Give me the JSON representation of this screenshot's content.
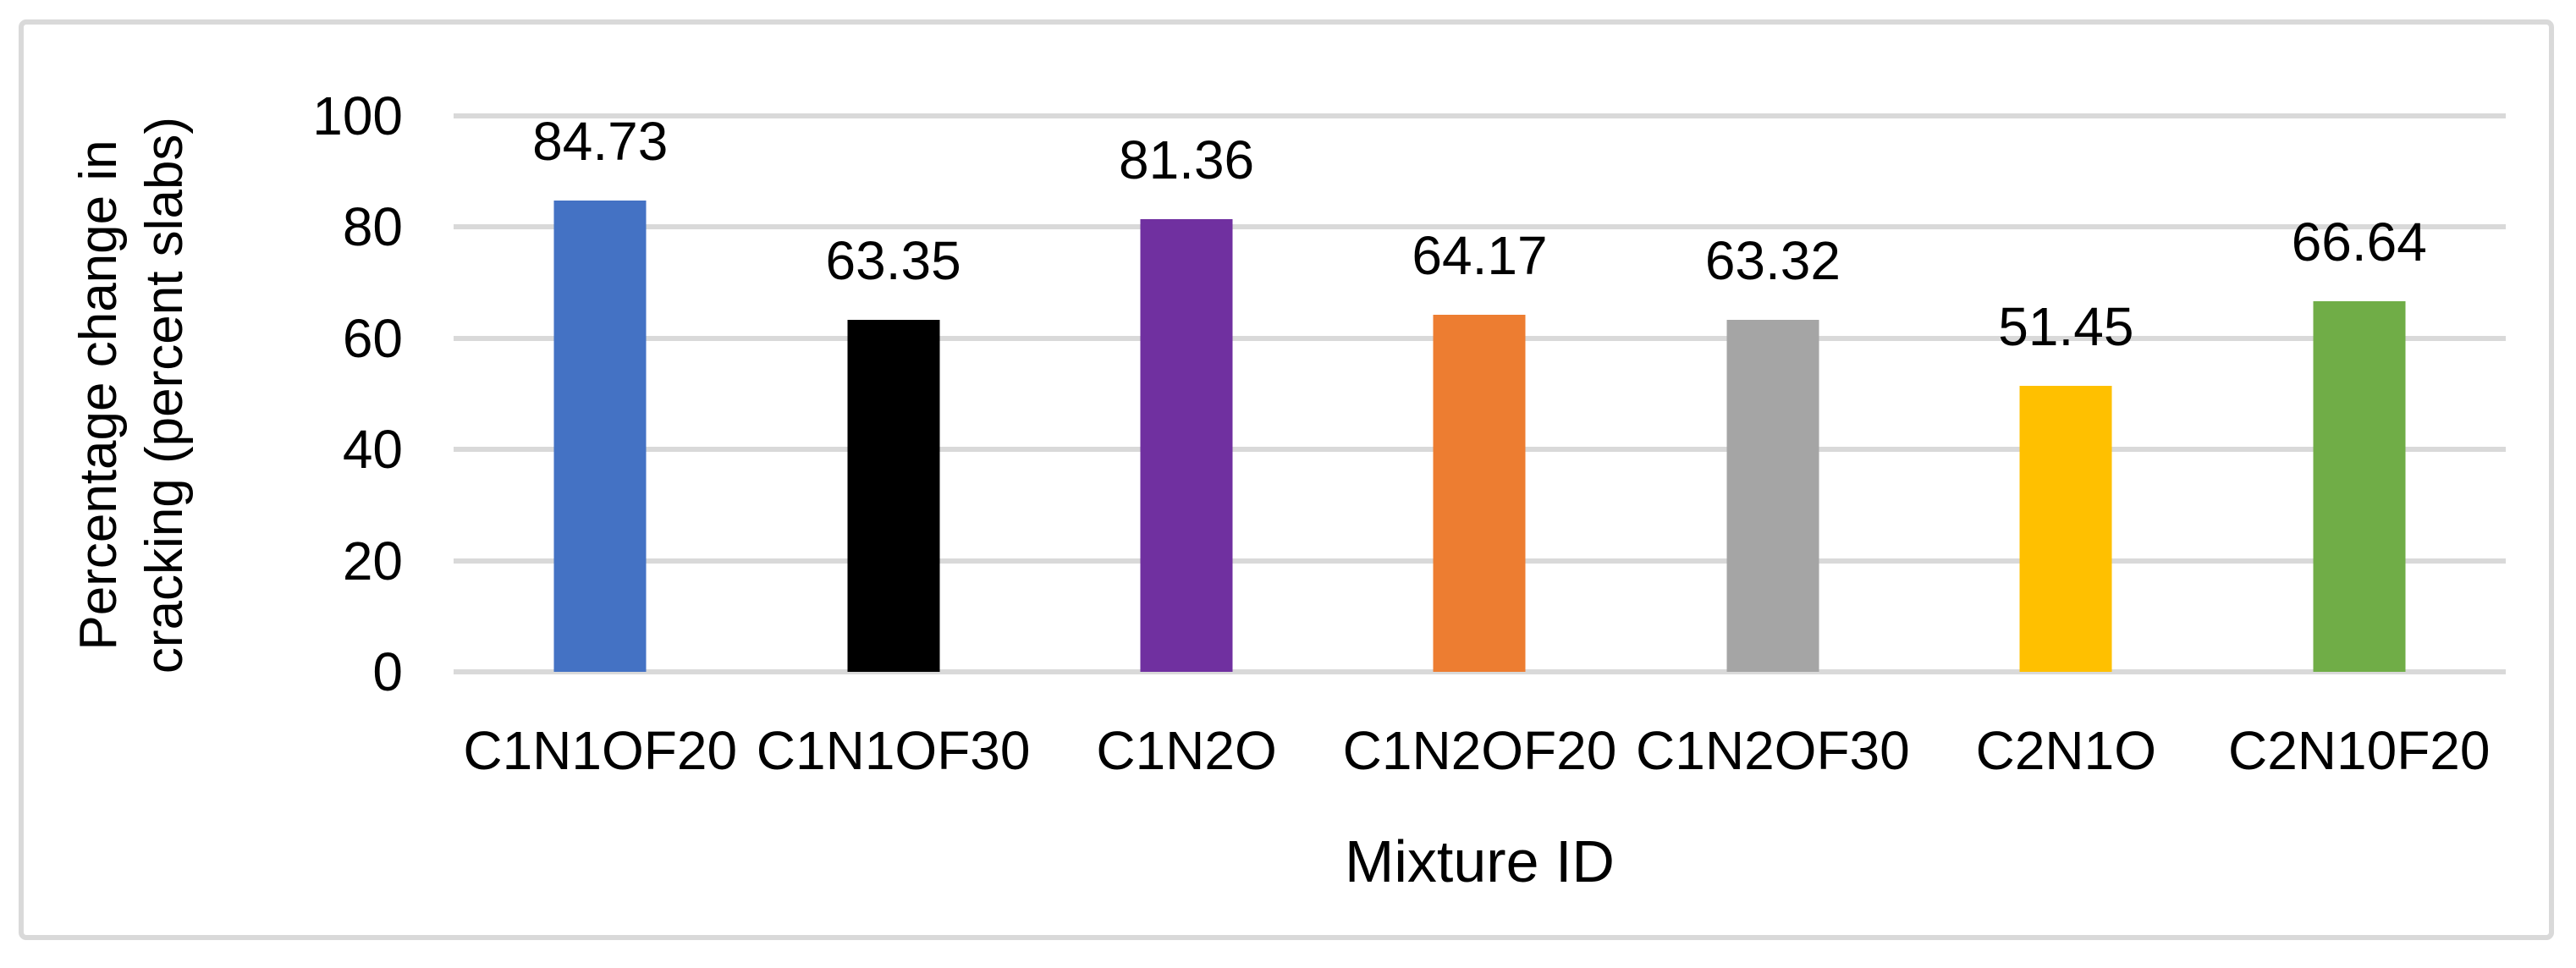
{
  "colors": {
    "background": "#FFFFFF",
    "frame_border": "#D9D9D9",
    "gridline": "#D9D9D9",
    "text": "#000000"
  },
  "chart_data": {
    "type": "bar",
    "title": "",
    "xlabel": "Mixture ID",
    "ylabel": "Percentage change in cracking (percent slabs)",
    "ylabel_lines": [
      "Percentage change in",
      "cracking (percent slabs)"
    ],
    "categories": [
      "C1N1OF20",
      "C1N1OF30",
      "C1N2O",
      "C1N2OF20",
      "C1N2OF30",
      "C2N1O",
      "C2N10F20"
    ],
    "values": [
      84.73,
      63.35,
      81.36,
      64.17,
      63.32,
      51.45,
      66.64
    ],
    "value_labels": [
      "84.73",
      "63.35",
      "81.36",
      "64.17",
      "63.32",
      "51.45",
      "66.64"
    ],
    "bar_colors": [
      "#4472C4",
      "#000000",
      "#7030A0",
      "#ED7D31",
      "#A5A5A5",
      "#FFC000",
      "#70AD47"
    ],
    "ylim": [
      0,
      100
    ],
    "yticks": [
      0,
      20,
      40,
      60,
      80,
      100
    ],
    "grid": true,
    "legend": "none",
    "value_labels_position": "outside-end"
  }
}
